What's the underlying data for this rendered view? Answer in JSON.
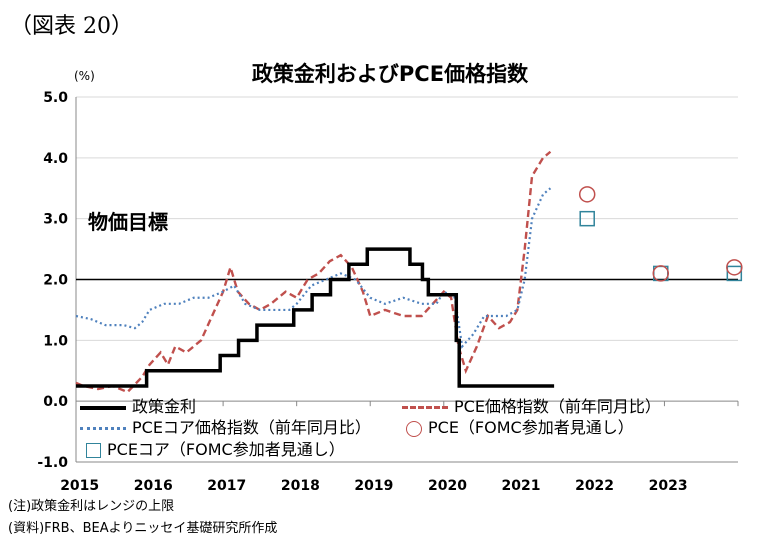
{
  "figure_label": "（図表 20）",
  "notes": [
    "(注)政策金利はレンジの上限",
    "(資料)FRB、BEAよりニッセイ基礎研究所作成"
  ],
  "chart_data": {
    "type": "line",
    "title": "政策金利およびPCE価格指数",
    "y_unit": "(%)",
    "ylim": [
      -1.0,
      5.0
    ],
    "yticks": [
      "5.0",
      "4.0",
      "3.0",
      "2.0",
      "1.0",
      "0.0",
      "-1.0"
    ],
    "xlim": [
      2015.0,
      2024.0
    ],
    "xticks": [
      "2015",
      "2016",
      "2017",
      "2018",
      "2019",
      "2020",
      "2021",
      "2022",
      "2023"
    ],
    "grid": true,
    "annotation": "物価目標",
    "target_line": 2.0,
    "colors": {
      "policy": "#000000",
      "pce": "#c0504d",
      "core": "#4f81bd",
      "projection_pce": "#c0504d",
      "projection_core": "#31849b"
    },
    "series": [
      {
        "name": "政策金利",
        "style": "step",
        "points": [
          [
            2015.0,
            0.25
          ],
          [
            2015.96,
            0.5
          ],
          [
            2016.96,
            0.75
          ],
          [
            2017.21,
            1.0
          ],
          [
            2017.46,
            1.25
          ],
          [
            2017.96,
            1.5
          ],
          [
            2018.21,
            1.75
          ],
          [
            2018.46,
            2.0
          ],
          [
            2018.71,
            2.25
          ],
          [
            2018.96,
            2.5
          ],
          [
            2019.54,
            2.25
          ],
          [
            2019.71,
            2.0
          ],
          [
            2019.79,
            1.75
          ],
          [
            2020.17,
            1.0
          ],
          [
            2020.21,
            0.25
          ],
          [
            2021.5,
            0.25
          ]
        ]
      },
      {
        "name": "PCE価格指数（前年同月比）",
        "style": "dashed",
        "points": [
          [
            2015.0,
            0.3
          ],
          [
            2015.1,
            0.25
          ],
          [
            2015.3,
            0.2
          ],
          [
            2015.5,
            0.25
          ],
          [
            2015.7,
            0.15
          ],
          [
            2015.9,
            0.4
          ],
          [
            2016.0,
            0.6
          ],
          [
            2016.15,
            0.8
          ],
          [
            2016.25,
            0.6
          ],
          [
            2016.35,
            0.9
          ],
          [
            2016.5,
            0.8
          ],
          [
            2016.7,
            1.0
          ],
          [
            2016.85,
            1.4
          ],
          [
            2017.0,
            1.8
          ],
          [
            2017.1,
            2.2
          ],
          [
            2017.2,
            1.8
          ],
          [
            2017.35,
            1.6
          ],
          [
            2017.5,
            1.5
          ],
          [
            2017.65,
            1.6
          ],
          [
            2017.85,
            1.8
          ],
          [
            2018.0,
            1.7
          ],
          [
            2018.15,
            2.0
          ],
          [
            2018.3,
            2.1
          ],
          [
            2018.45,
            2.3
          ],
          [
            2018.6,
            2.4
          ],
          [
            2018.75,
            2.2
          ],
          [
            2018.9,
            1.8
          ],
          [
            2019.0,
            1.4
          ],
          [
            2019.2,
            1.5
          ],
          [
            2019.45,
            1.4
          ],
          [
            2019.7,
            1.4
          ],
          [
            2019.85,
            1.6
          ],
          [
            2020.0,
            1.8
          ],
          [
            2020.1,
            1.7
          ],
          [
            2020.2,
            0.9
          ],
          [
            2020.3,
            0.5
          ],
          [
            2020.45,
            0.9
          ],
          [
            2020.6,
            1.4
          ],
          [
            2020.75,
            1.2
          ],
          [
            2020.9,
            1.3
          ],
          [
            2021.0,
            1.5
          ],
          [
            2021.1,
            2.5
          ],
          [
            2021.2,
            3.7
          ],
          [
            2021.35,
            4.0
          ],
          [
            2021.45,
            4.1
          ]
        ]
      },
      {
        "name": "PCEコア価格指数（前年同月比）",
        "style": "dotted",
        "points": [
          [
            2015.0,
            1.4
          ],
          [
            2015.2,
            1.35
          ],
          [
            2015.4,
            1.25
          ],
          [
            2015.65,
            1.25
          ],
          [
            2015.8,
            1.2
          ],
          [
            2015.9,
            1.3
          ],
          [
            2016.0,
            1.5
          ],
          [
            2016.2,
            1.6
          ],
          [
            2016.4,
            1.6
          ],
          [
            2016.6,
            1.7
          ],
          [
            2016.8,
            1.7
          ],
          [
            2017.0,
            1.8
          ],
          [
            2017.15,
            1.9
          ],
          [
            2017.3,
            1.6
          ],
          [
            2017.5,
            1.5
          ],
          [
            2017.7,
            1.5
          ],
          [
            2017.9,
            1.5
          ],
          [
            2018.0,
            1.6
          ],
          [
            2018.2,
            1.9
          ],
          [
            2018.4,
            2.0
          ],
          [
            2018.6,
            2.1
          ],
          [
            2018.8,
            2.0
          ],
          [
            2019.0,
            1.7
          ],
          [
            2019.2,
            1.6
          ],
          [
            2019.45,
            1.7
          ],
          [
            2019.7,
            1.6
          ],
          [
            2019.9,
            1.6
          ],
          [
            2020.0,
            1.8
          ],
          [
            2020.15,
            1.7
          ],
          [
            2020.25,
            0.9
          ],
          [
            2020.4,
            1.1
          ],
          [
            2020.55,
            1.4
          ],
          [
            2020.7,
            1.4
          ],
          [
            2020.85,
            1.4
          ],
          [
            2021.0,
            1.5
          ],
          [
            2021.1,
            2.0
          ],
          [
            2021.2,
            3.0
          ],
          [
            2021.35,
            3.4
          ],
          [
            2021.45,
            3.5
          ]
        ]
      }
    ],
    "projections": [
      {
        "name": "PCE（FOMC参加者見通し）",
        "marker": "circle",
        "points": [
          [
            2021.95,
            3.4
          ],
          [
            2022.95,
            2.1
          ],
          [
            2023.95,
            2.2
          ]
        ]
      },
      {
        "name": "PCEコア（FOMC参加者見通し）",
        "marker": "square",
        "points": [
          [
            2021.95,
            3.0
          ],
          [
            2022.95,
            2.1
          ],
          [
            2023.95,
            2.1
          ]
        ]
      }
    ]
  }
}
